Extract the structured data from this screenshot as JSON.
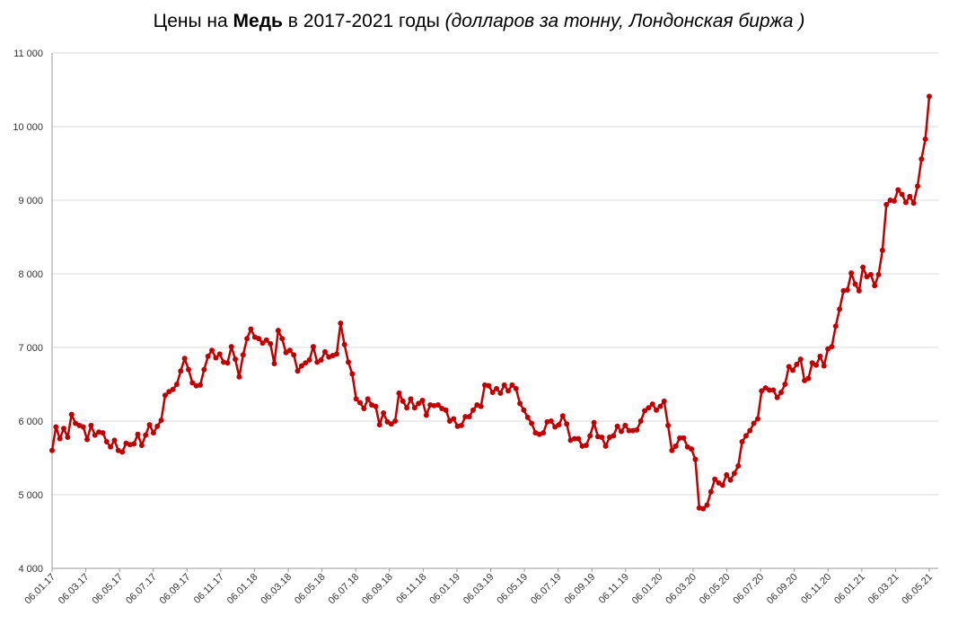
{
  "title": {
    "prefix": "Цены на ",
    "bold": "Медь",
    "middle": " в 2017-2021 годы ",
    "italic": "(долларов за тонну, Лондонская биржа )"
  },
  "colors": {
    "line": "#c00000",
    "grid": "#d9d9d9",
    "axis": "#999999"
  },
  "chart_data": {
    "type": "line",
    "title": "Цены на Медь в 2017-2021 годы (долларов за тонну, Лондонская биржа )",
    "xlabel": "",
    "ylabel": "",
    "ylim": [
      4000,
      11000
    ],
    "yticks": [
      4000,
      5000,
      6000,
      7000,
      8000,
      9000,
      10000,
      11000
    ],
    "ytick_labels": [
      "4 000",
      "5 000",
      "6 000",
      "7 000",
      "8 000",
      "9 000",
      "10 000",
      "11 000"
    ],
    "xtick_labels": [
      "06.01.17",
      "06.03.17",
      "06.05.17",
      "06.07.17",
      "06.09.17",
      "06.11.17",
      "06.01.18",
      "06.03.18",
      "06.05.18",
      "06.07.18",
      "06.09.18",
      "06.11.18",
      "06.01.19",
      "06.03.19",
      "06.05.19",
      "06.07.19",
      "06.09.19",
      "06.11.19",
      "06.01.20",
      "06.03.20",
      "06.05.20",
      "06.07.20",
      "06.09.20",
      "06.11.20",
      "06.01.21",
      "06.03.21",
      "06.05.21"
    ],
    "grid": true,
    "legend": "none",
    "series": [
      {
        "values": [
          5600,
          5920,
          5760,
          5900,
          5780,
          6090,
          5970,
          5940,
          5920,
          5750,
          5940,
          5810,
          5850,
          5840,
          5720,
          5650,
          5740,
          5600,
          5580,
          5700,
          5680,
          5690,
          5820,
          5670,
          5810,
          5950,
          5840,
          5930,
          6010,
          6350,
          6400,
          6430,
          6500,
          6680,
          6850,
          6700,
          6520,
          6480,
          6490,
          6700,
          6880,
          6960,
          6860,
          6910,
          6800,
          6790,
          7010,
          6840,
          6600,
          6900,
          7120,
          7250,
          7140,
          7120,
          7060,
          7100,
          7050,
          6780,
          7230,
          7120,
          6930,
          6960,
          6900,
          6680,
          6750,
          6790,
          6830,
          7010,
          6800,
          6830,
          6940,
          6870,
          6890,
          6910,
          7330,
          7040,
          6800,
          6640,
          6300,
          6250,
          6170,
          6300,
          6220,
          6200,
          5950,
          6110,
          5990,
          5960,
          6000,
          6380,
          6270,
          6180,
          6300,
          6180,
          6240,
          6280,
          6080,
          6220,
          6210,
          6220,
          6170,
          6150,
          6000,
          6030,
          5930,
          5940,
          6060,
          6060,
          6150,
          6220,
          6200,
          6490,
          6480,
          6390,
          6440,
          6380,
          6490,
          6410,
          6490,
          6440,
          6240,
          6150,
          6050,
          5970,
          5840,
          5820,
          5840,
          5990,
          6000,
          5920,
          5950,
          6070,
          5960,
          5740,
          5760,
          5760,
          5660,
          5670,
          5800,
          5980,
          5790,
          5780,
          5660,
          5780,
          5800,
          5930,
          5860,
          5940,
          5870,
          5870,
          5880,
          6000,
          6140,
          6180,
          6230,
          6150,
          6200,
          6270,
          5940,
          5600,
          5660,
          5770,
          5770,
          5650,
          5620,
          5480,
          4820,
          4810,
          4860,
          5040,
          5210,
          5160,
          5130,
          5270,
          5200,
          5290,
          5390,
          5720,
          5800,
          5870,
          5970,
          6030,
          6410,
          6450,
          6420,
          6420,
          6320,
          6390,
          6500,
          6740,
          6690,
          6770,
          6840,
          6550,
          6580,
          6790,
          6760,
          6880,
          6750,
          6980,
          7010,
          7290,
          7520,
          7770,
          7780,
          8010,
          7860,
          7770,
          8090,
          7960,
          7990,
          7840,
          7990,
          8320,
          8940,
          9000,
          8990,
          9140,
          9080,
          8970,
          9050,
          8960,
          9190,
          9560,
          9830,
          10410
        ]
      }
    ]
  }
}
